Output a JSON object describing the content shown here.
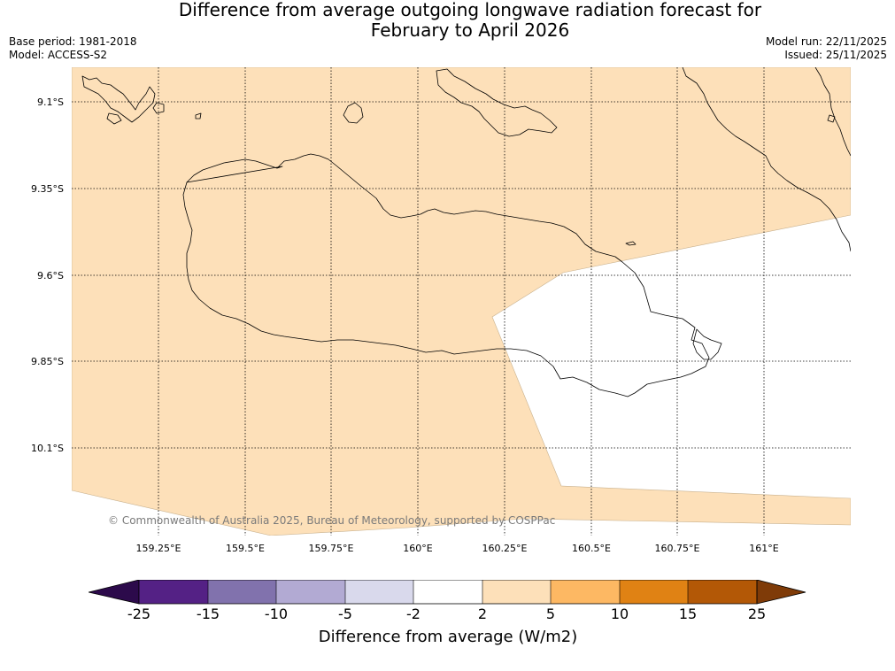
{
  "title": {
    "line1": "Difference from average outgoing longwave radiation forecast for",
    "line2": "February to April 2026"
  },
  "meta": {
    "base_period": "Base period: 1981-2018",
    "model": "Model: ACCESS-S2",
    "model_run": "Model run: 22/11/2025",
    "issued": "Issued: 25/11/2025"
  },
  "map": {
    "credit": "© Commonwealth of Australia 2025, Bureau of Meteorology, supported by COSPPac",
    "latitude_labels": [
      "9.1°S",
      "9.35°S",
      "9.6°S",
      "9.85°S",
      "10.1°S"
    ],
    "longitude_labels": [
      "159.25°E",
      "159.5°E",
      "159.75°E",
      "160°E",
      "160.25°E",
      "160.5°E",
      "160.75°E",
      "161°E"
    ],
    "colors": {
      "category_2_to_5": "#fde0b9",
      "category_neutral": "#ffffff",
      "coastline": "#000000",
      "gridline": "#000000"
    }
  },
  "colorbar": {
    "title": "Difference from average (W/m2)",
    "ticks": [
      "-25",
      "-15",
      "-10",
      "-5",
      "-2",
      "2",
      "5",
      "10",
      "15",
      "25"
    ],
    "bins": [
      {
        "range": "< -25",
        "color": "#2c0a4b"
      },
      {
        "range": "-25 to -15",
        "color": "#542185"
      },
      {
        "range": "-15 to -10",
        "color": "#8172ad"
      },
      {
        "range": "-10 to -5",
        "color": "#b2aad3"
      },
      {
        "range": "-5 to -2",
        "color": "#d9d9ec"
      },
      {
        "range": "-2 to 2",
        "color": "#ffffff"
      },
      {
        "range": "2 to 5",
        "color": "#fde0b9"
      },
      {
        "range": "5 to 10",
        "color": "#fdb863"
      },
      {
        "range": "10 to 15",
        "color": "#e08214"
      },
      {
        "range": "15 to 25",
        "color": "#b35806"
      },
      {
        "range": "> 25",
        "color": "#7f3b08"
      }
    ]
  }
}
